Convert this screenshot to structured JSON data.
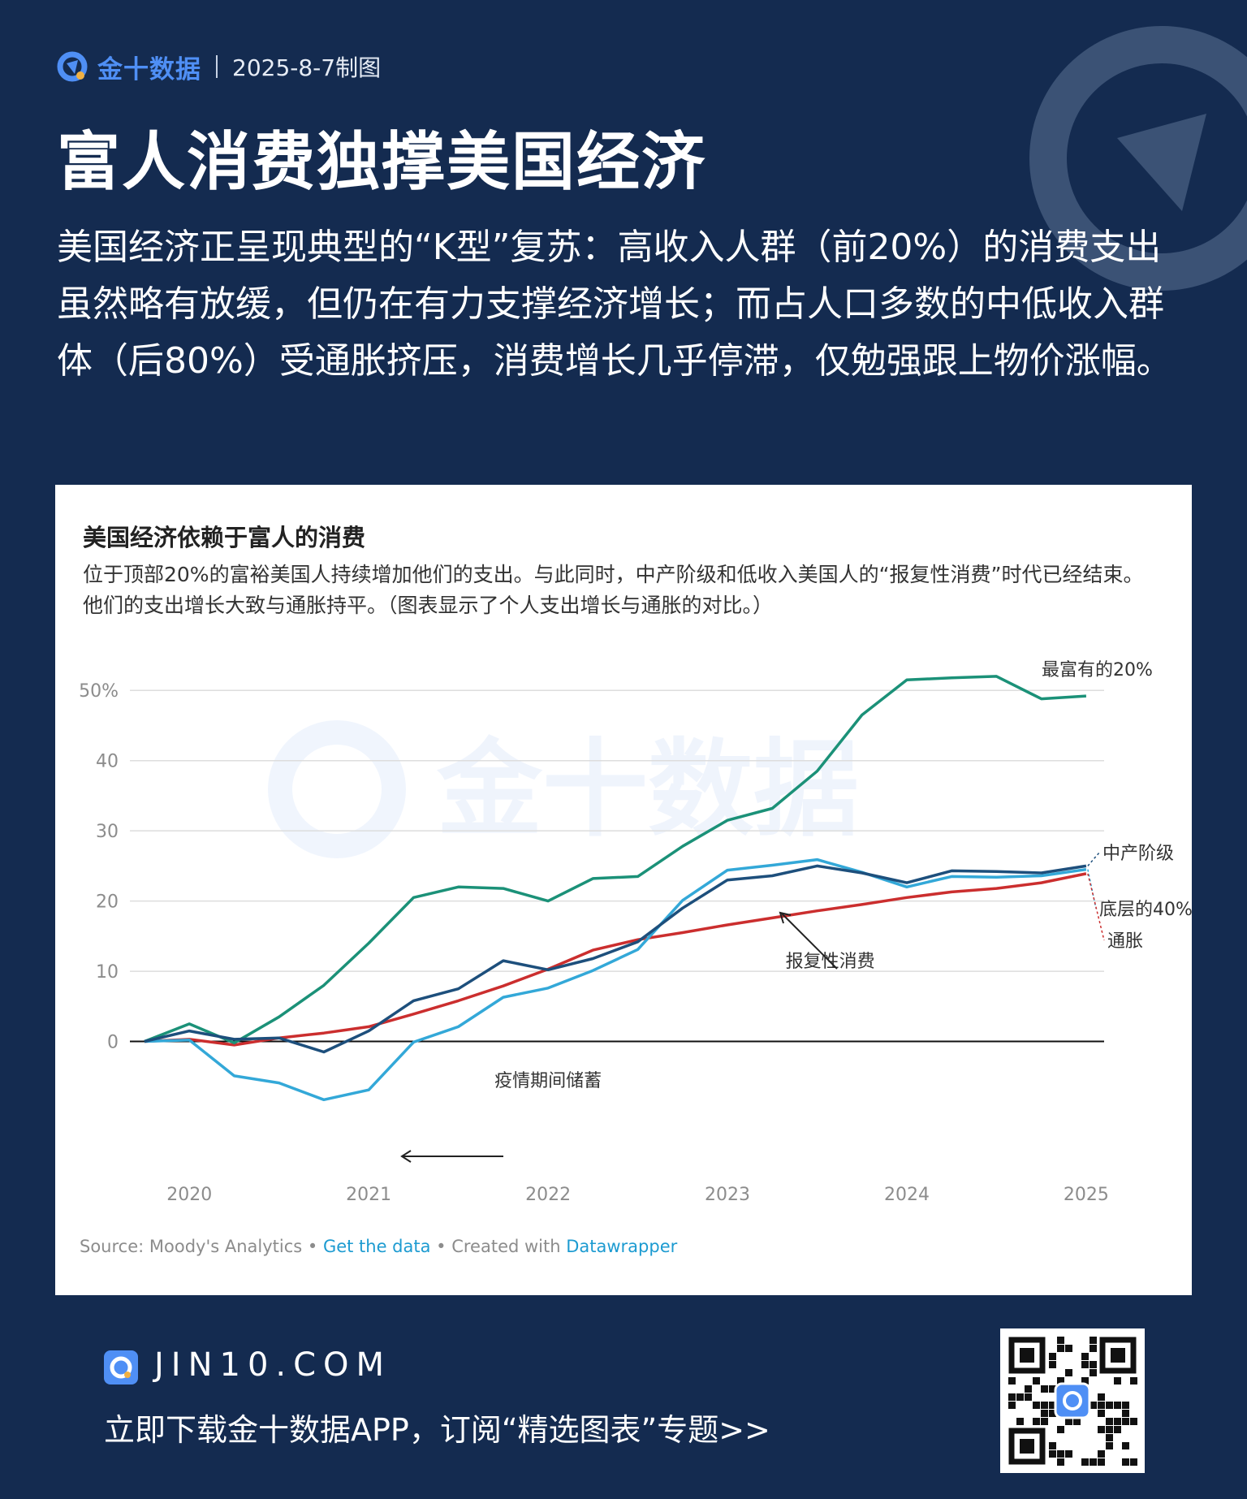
{
  "brand": {
    "name": "金十数据",
    "date": "2025-8-7制图",
    "watermark": "金十数据"
  },
  "headline": "富人消费独撑美国经济",
  "summary": "美国经济正呈现典型的“K型”复苏：高收入人群（前20%）的消费支出虽然略有放缓，但仍在有力支撑经济增长；而占人口多数的中低收入群体（后80%）受通胀挤压，消费增长几乎停滞，仅勉强跟上物价涨幅。",
  "colors": {
    "background": "#142b50",
    "accent": "#4f8ff5",
    "top20": "#1b9178",
    "middle": "#1d4f7c",
    "bottom40": "#33a8d8",
    "inflation": "#cb2e2e"
  },
  "chart_data": {
    "type": "line",
    "title": "美国经济依赖于富人的消费",
    "subtitle": "位于顶部20%的富裕美国人持续增加他们的支出。与此同时，中产阶级和低收入美国人的“报复性消费”时代已经结束。他们的支出增长大致与通胀持平。（图表显示了个人支出增长与通胀的对比。）",
    "xlabel": "",
    "ylabel": "",
    "x_ticks": [
      "2020",
      "2021",
      "2022",
      "2023",
      "2024",
      "2025"
    ],
    "y_ticks": [
      "0",
      "10",
      "20",
      "30",
      "40",
      "50%"
    ],
    "xlim": [
      2019.75,
      2025.1
    ],
    "ylim": [
      -10,
      55
    ],
    "grid": true,
    "x": [
      2019.75,
      2020.0,
      2020.25,
      2020.5,
      2020.75,
      2021.0,
      2021.25,
      2021.5,
      2021.75,
      2022.0,
      2022.25,
      2022.5,
      2022.75,
      2023.0,
      2023.25,
      2023.5,
      2023.75,
      2024.0,
      2024.25,
      2024.5,
      2024.75,
      2025.0
    ],
    "series": [
      {
        "name": "最富有的20%",
        "color": "#1b9178",
        "values": [
          0.0,
          2.5,
          -0.2,
          3.5,
          8.0,
          14.0,
          20.5,
          22.0,
          21.8,
          20.0,
          23.2,
          23.5,
          27.8,
          31.5,
          33.2,
          38.5,
          46.5,
          51.5,
          51.8,
          52.0,
          48.8,
          49.2
        ]
      },
      {
        "name": "中产阶级",
        "color": "#1d4f7c",
        "values": [
          0.0,
          1.5,
          0.3,
          0.5,
          -1.5,
          1.5,
          5.8,
          7.5,
          11.5,
          10.2,
          11.8,
          14.2,
          19.0,
          23.0,
          23.6,
          25.0,
          24.0,
          22.6,
          24.3,
          24.2,
          24.0,
          25.0
        ]
      },
      {
        "name": "底层的40%",
        "color": "#33a8d8",
        "values": [
          0.0,
          0.2,
          -4.9,
          -5.9,
          -8.3,
          -6.9,
          -0.1,
          2.1,
          6.3,
          7.6,
          10.1,
          13.1,
          20.1,
          24.4,
          25.1,
          25.9,
          24.1,
          22.0,
          23.5,
          23.4,
          23.6,
          24.5
        ]
      },
      {
        "name": "通胀",
        "color": "#cb2e2e",
        "values": [
          0.0,
          0.3,
          -0.5,
          0.5,
          1.2,
          2.1,
          3.9,
          5.8,
          7.9,
          10.3,
          13.0,
          14.5,
          15.5,
          16.6,
          17.6,
          18.6,
          19.5,
          20.5,
          21.3,
          21.8,
          22.6,
          23.9
        ]
      }
    ],
    "annotations": [
      {
        "text": "报复性消费",
        "x": 2023.6,
        "y": 11.5
      },
      {
        "text": "疫情期间储蓄",
        "x": 2022.0,
        "y": -5.5
      }
    ]
  },
  "source": {
    "prefix": "Source: Moody's Analytics • ",
    "link1": "Get the data",
    "middle": " • Created with ",
    "link2": "Datawrapper"
  },
  "footer": {
    "url": "JIN10.COM",
    "cta": "立即下载金十数据APP，订阅“精选图表”专题>>"
  }
}
